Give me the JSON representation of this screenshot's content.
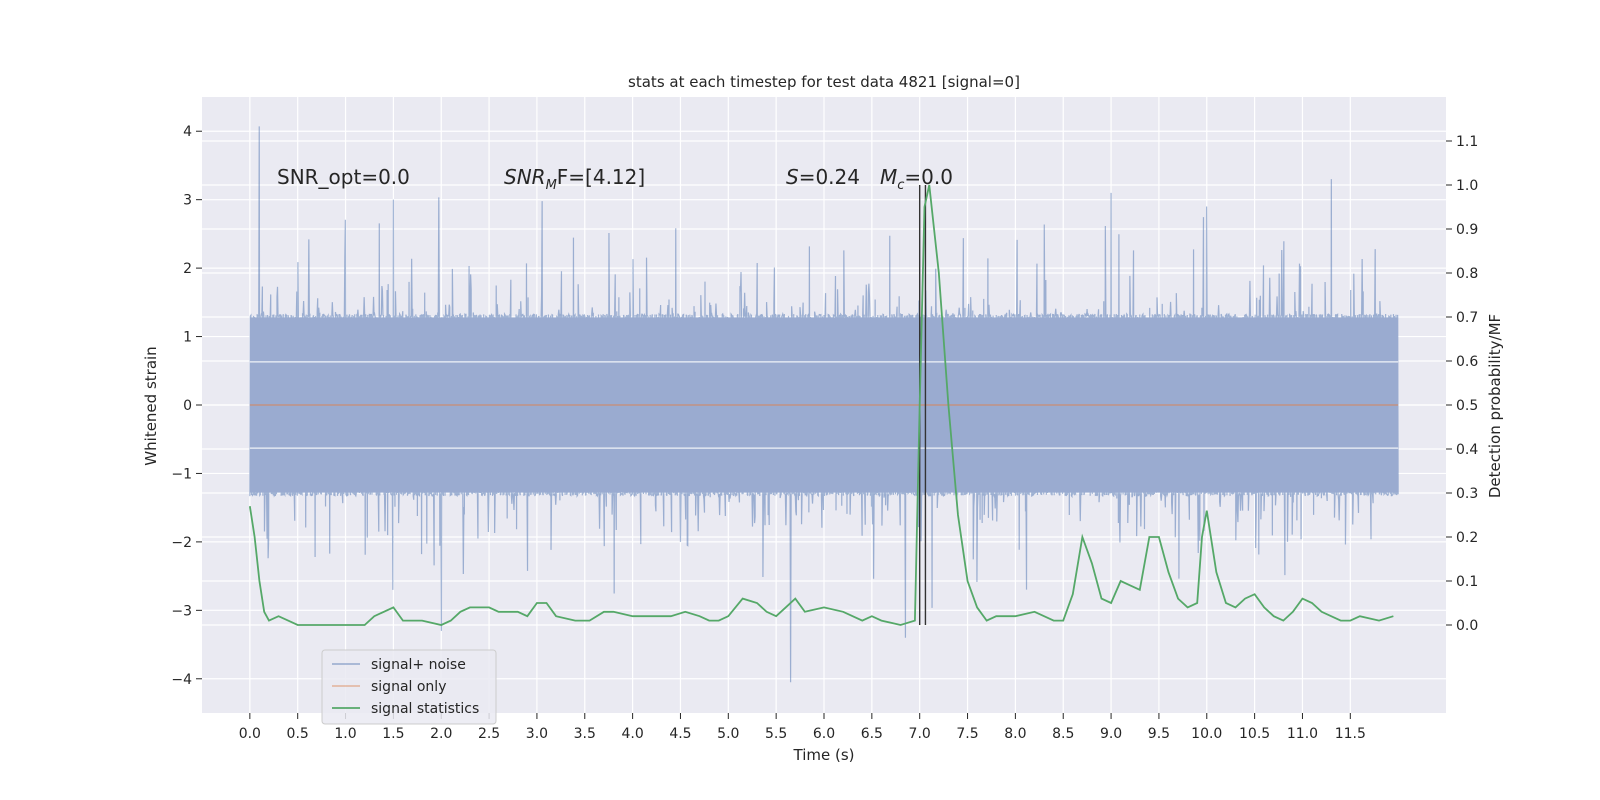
{
  "chart_data": {
    "type": "line",
    "title": "stats at each timestep for test data 4821 [signal=0]",
    "xlabel": "Time (s)",
    "ylabel_left": "Whitened strain",
    "ylabel_right": "Detection probability/MF",
    "xlim": [
      -0.5,
      12.5
    ],
    "ylim_left": [
      -4.5,
      4.5
    ],
    "ylim_right": [
      -0.2,
      1.2
    ],
    "xticks": [
      0.0,
      0.5,
      1.0,
      1.5,
      2.0,
      2.5,
      3.0,
      3.5,
      4.0,
      4.5,
      5.0,
      5.5,
      6.0,
      6.5,
      7.0,
      7.5,
      8.0,
      8.5,
      9.0,
      9.5,
      10.0,
      10.5,
      11.0,
      11.5
    ],
    "xtick_labels": [
      "0.0",
      "0.5",
      "1.0",
      "1.5",
      "2.0",
      "2.5",
      "3.0",
      "3.5",
      "4.0",
      "4.5",
      "5.0",
      "5.5",
      "6.0",
      "6.5",
      "7.0",
      "7.5",
      "8.0",
      "8.5",
      "9.0",
      "9.5",
      "10.0",
      "10.5",
      "11.0",
      "11.5"
    ],
    "yticks_left": [
      4,
      3,
      2,
      1,
      0,
      -1,
      -2,
      -3,
      -4
    ],
    "ytick_labels_left": [
      "4",
      "3",
      "2",
      "1",
      "0",
      "−1",
      "−2",
      "−3",
      "−4"
    ],
    "yticks_right": [
      1.1,
      1.0,
      0.9,
      0.8,
      0.7,
      0.6,
      0.5,
      0.4,
      0.3,
      0.2,
      0.1,
      0.0
    ],
    "ytick_labels_right": [
      "1.1",
      "1.0",
      "0.9",
      "0.8",
      "0.7",
      "0.6",
      "0.5",
      "0.4",
      "0.3",
      "0.2",
      "0.1",
      "0.0"
    ],
    "annotations": {
      "snr_opt": "SNR_opt=0.0",
      "snr_mf_base": "SNR",
      "snr_mf_sub": "M",
      "snr_mf_rest": "F=[4.12]",
      "s_label": "S",
      "s_value": "=0.24",
      "mc_label": "M",
      "mc_sub": "c",
      "mc_value": "=0.0"
    },
    "vertical_markers": [
      7.0,
      7.06
    ],
    "noise_series": {
      "name": "signal+ noise",
      "color": "#4c72b0",
      "x_range": [
        0.0,
        12.0
      ],
      "envelope": 1.28,
      "peaks": [
        [
          0.1,
          4.07
        ],
        [
          1.5,
          3.0
        ],
        [
          2.0,
          -3.3
        ],
        [
          5.65,
          -4.05
        ],
        [
          6.85,
          -3.4
        ],
        [
          11.3,
          3.3
        ],
        [
          9.0,
          3.1
        ],
        [
          10.0,
          2.9
        ]
      ]
    },
    "signal_only": {
      "name": "signal only",
      "color": "#dd8452",
      "value": 0.0
    },
    "statistic_series": {
      "name": "signal statistics",
      "color": "#55a868",
      "x": [
        0.0,
        0.05,
        0.1,
        0.15,
        0.2,
        0.3,
        0.4,
        0.5,
        0.6,
        0.8,
        1.0,
        1.2,
        1.3,
        1.5,
        1.6,
        1.7,
        1.8,
        2.0,
        2.1,
        2.2,
        2.3,
        2.5,
        2.6,
        2.8,
        2.9,
        3.0,
        3.1,
        3.2,
        3.4,
        3.55,
        3.7,
        3.8,
        4.0,
        4.2,
        4.4,
        4.55,
        4.7,
        4.8,
        4.9,
        5.0,
        5.15,
        5.3,
        5.4,
        5.5,
        5.6,
        5.7,
        5.8,
        6.0,
        6.2,
        6.4,
        6.5,
        6.6,
        6.8,
        6.95,
        7.0,
        7.05,
        7.1,
        7.2,
        7.3,
        7.4,
        7.5,
        7.6,
        7.7,
        7.8,
        8.0,
        8.2,
        8.3,
        8.4,
        8.5,
        8.6,
        8.7,
        8.8,
        8.9,
        9.0,
        9.1,
        9.2,
        9.3,
        9.4,
        9.5,
        9.6,
        9.7,
        9.8,
        9.9,
        9.95,
        10.0,
        10.1,
        10.2,
        10.3,
        10.4,
        10.5,
        10.6,
        10.7,
        10.8,
        10.9,
        11.0,
        11.1,
        11.2,
        11.3,
        11.4,
        11.5,
        11.6,
        11.8,
        11.95
      ],
      "values": [
        0.27,
        0.2,
        0.1,
        0.03,
        0.01,
        0.02,
        0.01,
        0.0,
        0.0,
        0.0,
        0.0,
        0.0,
        0.02,
        0.04,
        0.01,
        0.01,
        0.01,
        0.0,
        0.01,
        0.03,
        0.04,
        0.04,
        0.03,
        0.03,
        0.02,
        0.05,
        0.05,
        0.02,
        0.01,
        0.01,
        0.03,
        0.03,
        0.02,
        0.02,
        0.02,
        0.03,
        0.02,
        0.01,
        0.01,
        0.02,
        0.06,
        0.05,
        0.03,
        0.02,
        0.04,
        0.06,
        0.03,
        0.04,
        0.03,
        0.01,
        0.02,
        0.01,
        0.0,
        0.01,
        0.5,
        0.95,
        1.0,
        0.8,
        0.5,
        0.25,
        0.1,
        0.04,
        0.01,
        0.02,
        0.02,
        0.03,
        0.02,
        0.01,
        0.01,
        0.07,
        0.2,
        0.14,
        0.06,
        0.05,
        0.1,
        0.09,
        0.08,
        0.2,
        0.2,
        0.12,
        0.06,
        0.04,
        0.05,
        0.2,
        0.26,
        0.12,
        0.05,
        0.04,
        0.06,
        0.07,
        0.04,
        0.02,
        0.01,
        0.03,
        0.06,
        0.05,
        0.03,
        0.02,
        0.01,
        0.01,
        0.02,
        0.01,
        0.02
      ]
    },
    "legend": {
      "position": "lower-left",
      "entries": [
        {
          "label": "signal+ noise",
          "color": "#4c72b0"
        },
        {
          "label": "signal only",
          "color": "#dd8452"
        },
        {
          "label": "signal statistics",
          "color": "#55a868"
        }
      ]
    },
    "grid": true,
    "background": "#eaeaf2"
  }
}
